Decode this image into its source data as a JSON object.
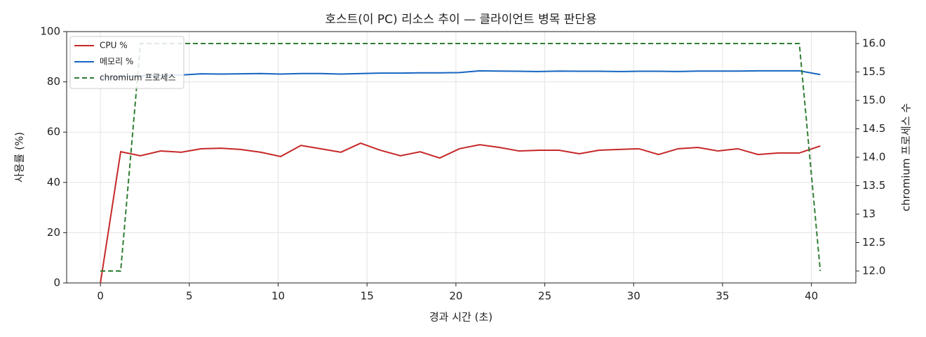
{
  "chart_data": {
    "type": "line",
    "title": "호스트(이 PC) 리소스 추이 — 클라이언트 병목 판단용",
    "xlabel": "경과 시간 (초)",
    "ylabel": "사용률 (%)",
    "y2label": "chromium 프로세스 수",
    "x": [
      0,
      1.14,
      2.25,
      3.39,
      4.54,
      5.68,
      6.79,
      7.89,
      9.03,
      10.14,
      11.28,
      12.39,
      13.53,
      14.64,
      15.74,
      16.88,
      17.99,
      19.09,
      20.2,
      21.34,
      22.45,
      23.55,
      24.69,
      25.8,
      26.94,
      28.05,
      29.15,
      30.29,
      31.4,
      32.5,
      33.61,
      34.75,
      35.85,
      37.0,
      38.14,
      39.32,
      40.5
    ],
    "series": [
      {
        "name": "CPU %",
        "color": "#c62828",
        "style": "solid",
        "values": [
          0,
          52.2,
          50.6,
          52.5,
          52.0,
          53.4,
          53.6,
          53.1,
          52.0,
          50.3,
          54.7,
          53.4,
          52.0,
          55.6,
          52.8,
          50.6,
          52.2,
          49.7,
          53.4,
          55.0,
          53.9,
          52.5,
          52.8,
          52.8,
          51.4,
          52.8,
          53.1,
          53.4,
          51.1,
          53.4,
          53.9,
          52.5,
          53.4,
          51.1,
          51.7,
          51.7,
          54.5
        ]
      },
      {
        "name": "메모리 %",
        "color": "#1565c0",
        "style": "solid",
        "values": [
          81.5,
          82.0,
          82.3,
          82.6,
          82.7,
          83.2,
          83.1,
          83.2,
          83.3,
          83.1,
          83.3,
          83.3,
          83.1,
          83.3,
          83.5,
          83.5,
          83.6,
          83.6,
          83.7,
          84.4,
          84.3,
          84.2,
          84.1,
          84.3,
          84.2,
          84.2,
          84.1,
          84.2,
          84.2,
          84.1,
          84.3,
          84.3,
          84.3,
          84.4,
          84.4,
          84.4,
          82.9
        ]
      },
      {
        "name": "chromium 프로세스",
        "color": "#2e7d32",
        "style": "dashed",
        "axis": "y2",
        "values": [
          12,
          12,
          16,
          16,
          16,
          16,
          16,
          16,
          16,
          16,
          16,
          16,
          16,
          16,
          16,
          16,
          16,
          16,
          16,
          16,
          16,
          16,
          16,
          16,
          16,
          16,
          16,
          16,
          16,
          16,
          16,
          16,
          16,
          16,
          16,
          16,
          12
        ]
      }
    ],
    "xlim": [
      -1.9,
      42.5
    ],
    "xticks": [
      0,
      5,
      10,
      15,
      20,
      25,
      30,
      35,
      40
    ],
    "ylim": [
      0,
      100
    ],
    "yticks": [
      0,
      20,
      40,
      60,
      80,
      100
    ],
    "y2lim": [
      11.79,
      16.21
    ],
    "y2ticks": [
      {
        "value": 12,
        "label": "12.0"
      },
      12.5,
      13,
      {
        "value": 13.5,
        "label": "13.5"
      },
      {
        "value": 14,
        "label": "14.0"
      },
      14.5,
      {
        "value": 15,
        "label": "15.0"
      },
      15.5,
      {
        "value": 16,
        "label": "16.0"
      }
    ],
    "grid": true,
    "legend": "upper-left"
  }
}
